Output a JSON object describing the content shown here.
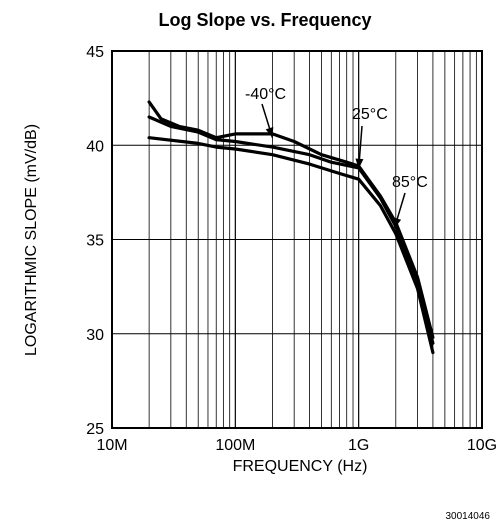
{
  "chart_data": {
    "type": "line",
    "title": "Log Slope vs. Frequency",
    "xlabel": "FREQUENCY (Hz)",
    "ylabel": "LOGARITHMIC SLOPE (mV/dB)",
    "x_scale": "log",
    "xlim": [
      10000000,
      10000000000
    ],
    "ylim": [
      25,
      45
    ],
    "x_ticks": [
      {
        "value": 10000000,
        "label": "10M"
      },
      {
        "value": 100000000,
        "label": "100M"
      },
      {
        "value": 1000000000,
        "label": "1G"
      },
      {
        "value": 10000000000,
        "label": "10G"
      }
    ],
    "y_ticks": [
      {
        "value": 25,
        "label": "25"
      },
      {
        "value": 30,
        "label": "30"
      },
      {
        "value": 35,
        "label": "35"
      },
      {
        "value": 40,
        "label": "40"
      },
      {
        "value": 45,
        "label": "45"
      }
    ],
    "grid": true,
    "series": [
      {
        "name": "-40°C",
        "points": [
          [
            20000000,
            42.3
          ],
          [
            25000000,
            41.4
          ],
          [
            35000000,
            41.0
          ],
          [
            50000000,
            40.8
          ],
          [
            70000000,
            40.4
          ],
          [
            100000000,
            40.6
          ],
          [
            200000000,
            40.6
          ],
          [
            300000000,
            40.2
          ],
          [
            500000000,
            39.5
          ],
          [
            800000000,
            39.1
          ],
          [
            1000000000,
            38.9
          ],
          [
            1500000000,
            37.3
          ],
          [
            2000000000,
            35.9
          ],
          [
            3000000000,
            33.0
          ],
          [
            4000000000,
            29.8
          ]
        ]
      },
      {
        "name": "25°C",
        "points": [
          [
            20000000,
            41.5
          ],
          [
            30000000,
            41.0
          ],
          [
            50000000,
            40.7
          ],
          [
            70000000,
            40.3
          ],
          [
            100000000,
            40.2
          ],
          [
            200000000,
            39.9
          ],
          [
            400000000,
            39.5
          ],
          [
            600000000,
            39.1
          ],
          [
            1000000000,
            38.8
          ],
          [
            1500000000,
            37.2
          ],
          [
            2000000000,
            35.7
          ],
          [
            3000000000,
            32.8
          ],
          [
            4000000000,
            29.5
          ]
        ]
      },
      {
        "name": "85°C",
        "points": [
          [
            20000000,
            40.4
          ],
          [
            50000000,
            40.1
          ],
          [
            70000000,
            39.9
          ],
          [
            100000000,
            39.8
          ],
          [
            200000000,
            39.5
          ],
          [
            400000000,
            39.0
          ],
          [
            700000000,
            38.5
          ],
          [
            1000000000,
            38.2
          ],
          [
            1500000000,
            36.8
          ],
          [
            2000000000,
            35.3
          ],
          [
            3000000000,
            32.4
          ],
          [
            4000000000,
            29.0
          ]
        ]
      }
    ],
    "annotations": [
      {
        "text": "-40°C",
        "series": "-40°C"
      },
      {
        "text": "25°C",
        "series": "25°C"
      },
      {
        "text": "85°C",
        "series": "85°C"
      }
    ],
    "figure_id": "30014046"
  }
}
